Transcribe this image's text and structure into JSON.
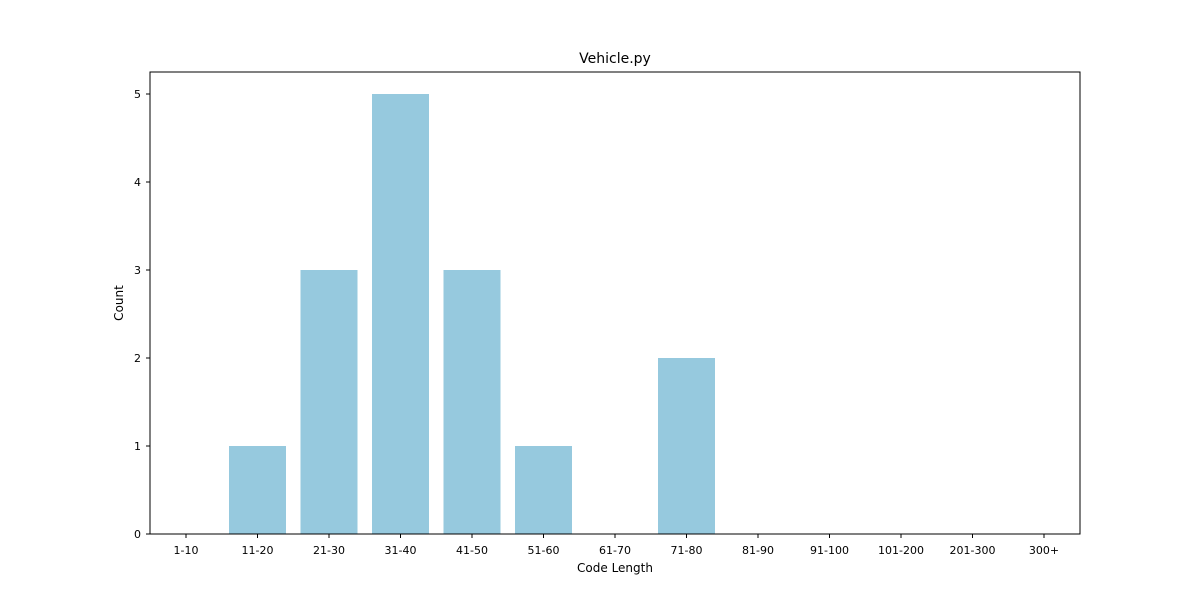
{
  "chart_data": {
    "type": "bar",
    "title": "Vehicle.py",
    "xlabel": "Code Length",
    "ylabel": "Count",
    "categories": [
      "1-10",
      "11-20",
      "21-30",
      "31-40",
      "41-50",
      "51-60",
      "61-70",
      "71-80",
      "81-90",
      "91-100",
      "101-200",
      "201-300",
      "300+"
    ],
    "values": [
      0,
      1,
      3,
      5,
      3,
      1,
      0,
      2,
      0,
      0,
      0,
      0,
      0
    ],
    "ylim": [
      0,
      5.25
    ],
    "yticks": [
      0,
      1,
      2,
      3,
      4,
      5
    ],
    "grid": false,
    "colors": {
      "bar": "#96c9de",
      "axis": "#000000"
    }
  }
}
